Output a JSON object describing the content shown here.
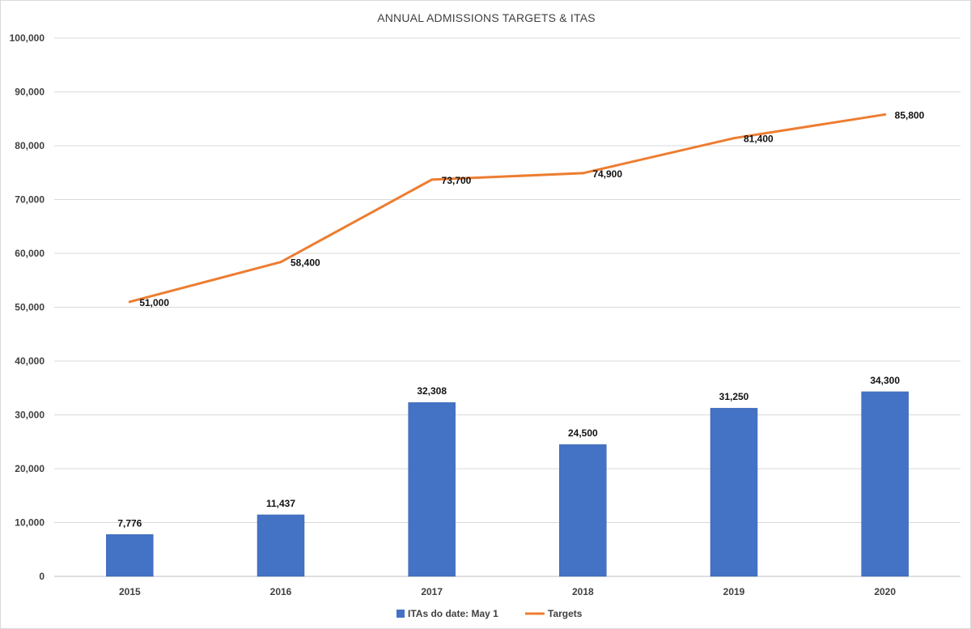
{
  "chart_data": {
    "type": "bar",
    "title": "ANNUAL ADMISSIONS TARGETS & ITAS",
    "categories": [
      "2015",
      "2016",
      "2017",
      "2018",
      "2019",
      "2020"
    ],
    "series": [
      {
        "name": "ITAs do date: May 1",
        "type": "bar",
        "color": "#4472c4",
        "values": [
          7776,
          11437,
          32308,
          24500,
          31250,
          34300
        ],
        "labels": [
          "7,776",
          "11,437",
          "32,308",
          "24,500",
          "31,250",
          "34,300"
        ]
      },
      {
        "name": "Targets",
        "type": "line",
        "color": "#ed7d31",
        "values": [
          51000,
          58400,
          73700,
          74900,
          81400,
          85800
        ],
        "labels": [
          "51,000",
          "58,400",
          "73,700",
          "74,900",
          "81,400",
          "85,800"
        ]
      }
    ],
    "ylim": [
      0,
      100000
    ],
    "yticks": [
      0,
      10000,
      20000,
      30000,
      40000,
      50000,
      60000,
      70000,
      80000,
      90000,
      100000
    ],
    "ytick_labels": [
      "0",
      "10,000",
      "20,000",
      "30,000",
      "40,000",
      "50,000",
      "60,000",
      "70,000",
      "80,000",
      "90,000",
      "100,000"
    ],
    "grid": true,
    "legend": "bottom-center"
  }
}
